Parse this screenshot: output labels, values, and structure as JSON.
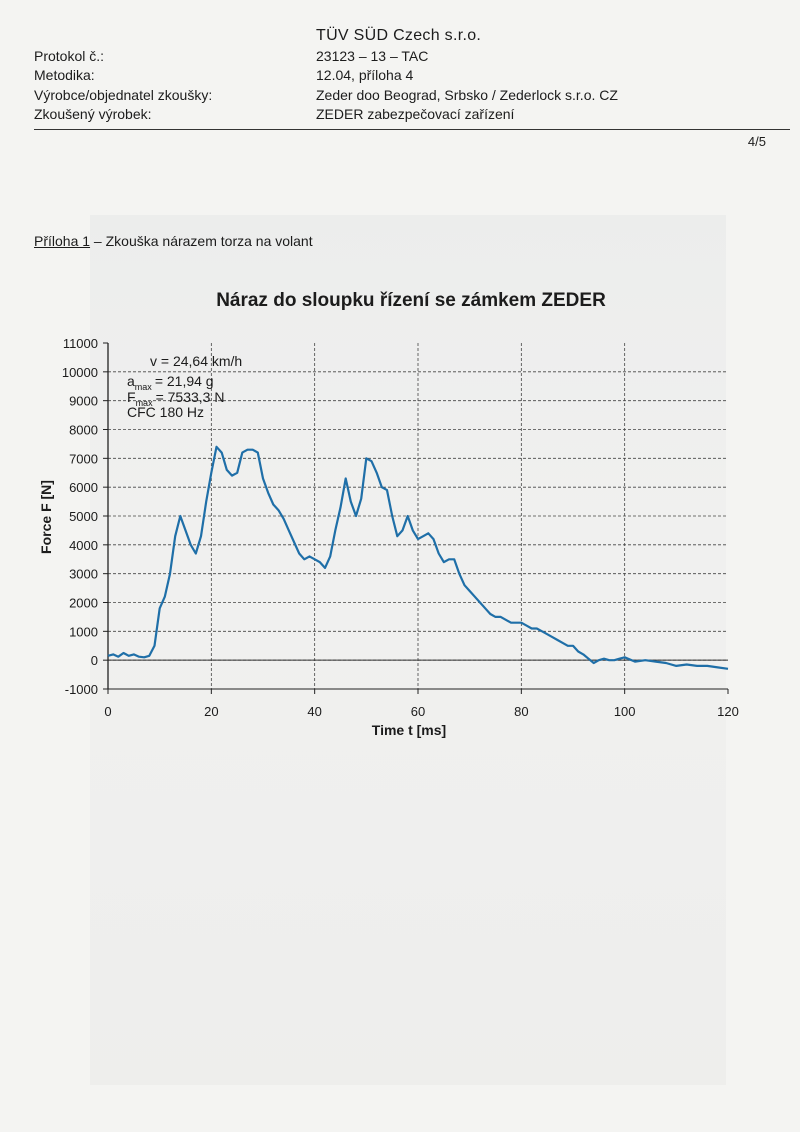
{
  "header": {
    "company": "TÜV SÜD Czech s.r.o.",
    "rows": [
      {
        "label": "Protokol č.:",
        "value": "23123 – 13 – TAC"
      },
      {
        "label": "Metodika:",
        "value": "12.04, příloha 4"
      },
      {
        "label": "Výrobce/objednatel zkoušky:",
        "value": "Zeder doo Beograd, Srbsko / Zederlock s.r.o. CZ"
      },
      {
        "label": "Zkoušený výrobek:",
        "value": "ZEDER zabezpečovací zařízení"
      }
    ],
    "page": "4/5"
  },
  "appendix": {
    "title_underlined": "Příloha 1",
    "title_rest": " – Zkouška nárazem torza na volant"
  },
  "chart_data": {
    "type": "line",
    "title": "Náraz do sloupku řízení se zámkem ZEDER",
    "xlabel": "Time t [ms]",
    "ylabel": "Force F [N]",
    "xlim": [
      0,
      120
    ],
    "ylim": [
      -1000,
      11000
    ],
    "xticks": [
      "0",
      "20",
      "40",
      "60",
      "80",
      "100",
      "120"
    ],
    "yticks": [
      "-1000",
      "0",
      "1000",
      "2000",
      "3000",
      "4000",
      "5000",
      "6000",
      "7000",
      "8000",
      "9000",
      "10000",
      "11000"
    ],
    "grid": true,
    "annotations": {
      "v": "v = 24,64 km/h",
      "a_sym": "a",
      "a_sub": "max",
      "a_val": "= 21,94 g",
      "f_sym": "F",
      "f_sub": "max",
      "f_val": "= 7533,3 N",
      "cfc": "CFC 180 Hz"
    },
    "series": [
      {
        "color": "#1f6fa8",
        "x": [
          0,
          1,
          2,
          3,
          4,
          5,
          6,
          7,
          8,
          9,
          10,
          11,
          12,
          13,
          14,
          15,
          16,
          17,
          18,
          19,
          20,
          21,
          22,
          23,
          24,
          25,
          26,
          27,
          28,
          29,
          30,
          31,
          32,
          33,
          34,
          35,
          36,
          37,
          38,
          39,
          40,
          41,
          42,
          43,
          44,
          45,
          46,
          47,
          48,
          49,
          50,
          51,
          52,
          53,
          54,
          55,
          56,
          57,
          58,
          59,
          60,
          61,
          62,
          63,
          64,
          65,
          66,
          67,
          68,
          69,
          70,
          71,
          72,
          73,
          74,
          75,
          76,
          77,
          78,
          79,
          80,
          81,
          82,
          83,
          84,
          85,
          86,
          87,
          88,
          89,
          90,
          91,
          92,
          93,
          94,
          95,
          96,
          97,
          98,
          99,
          100,
          102,
          104,
          106,
          108,
          110,
          112,
          114,
          116,
          118,
          120
        ],
        "y": [
          150,
          200,
          120,
          250,
          150,
          200,
          120,
          100,
          150,
          500,
          1800,
          2200,
          3000,
          4300,
          5000,
          4500,
          4000,
          3700,
          4300,
          5500,
          6500,
          7400,
          7200,
          6600,
          6400,
          6500,
          7200,
          7300,
          7300,
          7200,
          6300,
          5800,
          5400,
          5200,
          4900,
          4500,
          4100,
          3700,
          3500,
          3600,
          3500,
          3400,
          3200,
          3600,
          4500,
          5300,
          6300,
          5500,
          5000,
          5600,
          7000,
          6900,
          6500,
          6000,
          5900,
          5000,
          4300,
          4500,
          5000,
          4500,
          4200,
          4300,
          4400,
          4200,
          3700,
          3400,
          3500,
          3500,
          3000,
          2600,
          2400,
          2200,
          2000,
          1800,
          1600,
          1500,
          1500,
          1400,
          1300,
          1300,
          1300,
          1200,
          1100,
          1100,
          1000,
          900,
          800,
          700,
          600,
          500,
          500,
          300,
          200,
          50,
          -100,
          0,
          50,
          0,
          0,
          50,
          100,
          -50,
          0,
          -50,
          -100,
          -200,
          -150,
          -200,
          -200,
          -250,
          -300
        ]
      }
    ]
  }
}
